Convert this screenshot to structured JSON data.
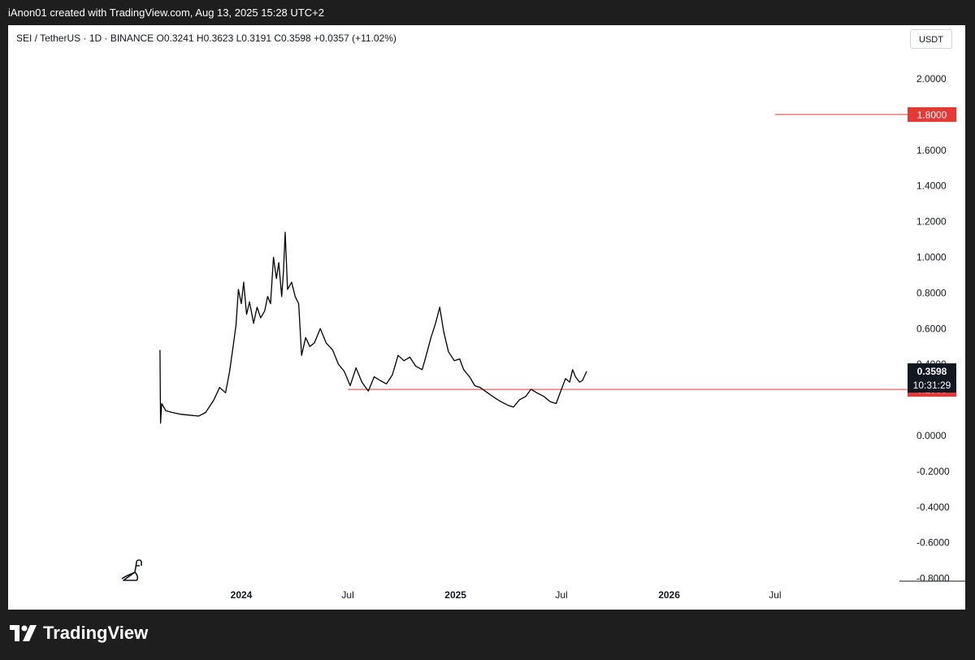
{
  "header": {
    "credit": "iAnon01 created with TradingView.com, Aug 13, 2025 15:28 UTC+2"
  },
  "legend": {
    "symbol": "SEI / TetherUS · 1D · BINANCE",
    "open": "O0.3241",
    "high": "H0.3623",
    "low": "L0.3191",
    "close": "C0.3598",
    "change": "+0.0357 (+11.02%)"
  },
  "currency": "USDT",
  "footer": {
    "brand": "TradingView"
  },
  "icons": {
    "brand_logo": "tradingview-logo-icon",
    "mascot": "dino-icon"
  },
  "colors": {
    "price": "#000000",
    "level_line": "#e53935",
    "last_price_bg": "#131722"
  },
  "chart_data": {
    "type": "line",
    "title": "SEI / TetherUS · 1D · BINANCE",
    "ylim": [
      -0.8,
      2.0
    ],
    "y_axis_position": "right",
    "y_ticks": [
      "2.0000",
      "1.6000",
      "1.4000",
      "1.2000",
      "1.0000",
      "0.8000",
      "0.6000",
      "0.4000",
      "0.0000",
      "-0.2000",
      "-0.4000",
      "-0.6000",
      "-0.8000"
    ],
    "x_ticks": [
      {
        "label": "2024",
        "date": "2024-01-01",
        "bold": true
      },
      {
        "label": "Jul",
        "date": "2024-07-01",
        "bold": false
      },
      {
        "label": "2025",
        "date": "2025-01-01",
        "bold": true
      },
      {
        "label": "Jul",
        "date": "2025-07-01",
        "bold": false
      },
      {
        "label": "2026",
        "date": "2026-01-01",
        "bold": true
      },
      {
        "label": "Jul",
        "date": "2026-07-01",
        "bold": false
      }
    ],
    "grid": false,
    "series": [
      {
        "values": [
          [
            "2023-08-15",
            0.48
          ],
          [
            "2023-08-16",
            0.07
          ],
          [
            "2023-08-18",
            0.18
          ],
          [
            "2023-08-25",
            0.14
          ],
          [
            "2023-09-05",
            0.13
          ],
          [
            "2023-09-20",
            0.12
          ],
          [
            "2023-10-05",
            0.115
          ],
          [
            "2023-10-20",
            0.11
          ],
          [
            "2023-11-01",
            0.13
          ],
          [
            "2023-11-15",
            0.2
          ],
          [
            "2023-11-25",
            0.27
          ],
          [
            "2023-12-05",
            0.24
          ],
          [
            "2023-12-12",
            0.36
          ],
          [
            "2023-12-18",
            0.5
          ],
          [
            "2023-12-23",
            0.62
          ],
          [
            "2023-12-27",
            0.82
          ],
          [
            "2024-01-01",
            0.74
          ],
          [
            "2024-01-05",
            0.86
          ],
          [
            "2024-01-10",
            0.68
          ],
          [
            "2024-01-15",
            0.75
          ],
          [
            "2024-01-22",
            0.63
          ],
          [
            "2024-01-28",
            0.72
          ],
          [
            "2024-02-03",
            0.66
          ],
          [
            "2024-02-10",
            0.7
          ],
          [
            "2024-02-15",
            0.78
          ],
          [
            "2024-02-20",
            0.74
          ],
          [
            "2024-02-25",
            1.0
          ],
          [
            "2024-03-01",
            0.88
          ],
          [
            "2024-03-05",
            0.97
          ],
          [
            "2024-03-10",
            0.78
          ],
          [
            "2024-03-13",
            0.92
          ],
          [
            "2024-03-16",
            1.14
          ],
          [
            "2024-03-20",
            0.82
          ],
          [
            "2024-03-27",
            0.86
          ],
          [
            "2024-04-02",
            0.78
          ],
          [
            "2024-04-08",
            0.74
          ],
          [
            "2024-04-13",
            0.45
          ],
          [
            "2024-04-20",
            0.55
          ],
          [
            "2024-04-27",
            0.5
          ],
          [
            "2024-05-05",
            0.52
          ],
          [
            "2024-05-15",
            0.6
          ],
          [
            "2024-05-25",
            0.52
          ],
          [
            "2024-06-05",
            0.48
          ],
          [
            "2024-06-15",
            0.4
          ],
          [
            "2024-06-25",
            0.36
          ],
          [
            "2024-07-05",
            0.28
          ],
          [
            "2024-07-15",
            0.38
          ],
          [
            "2024-07-25",
            0.3
          ],
          [
            "2024-08-05",
            0.25
          ],
          [
            "2024-08-15",
            0.33
          ],
          [
            "2024-08-25",
            0.31
          ],
          [
            "2024-09-05",
            0.29
          ],
          [
            "2024-09-15",
            0.34
          ],
          [
            "2024-09-25",
            0.45
          ],
          [
            "2024-10-05",
            0.42
          ],
          [
            "2024-10-15",
            0.44
          ],
          [
            "2024-10-25",
            0.39
          ],
          [
            "2024-11-05",
            0.37
          ],
          [
            "2024-11-12",
            0.45
          ],
          [
            "2024-11-20",
            0.55
          ],
          [
            "2024-11-28",
            0.63
          ],
          [
            "2024-12-05",
            0.72
          ],
          [
            "2024-12-12",
            0.58
          ],
          [
            "2024-12-20",
            0.47
          ],
          [
            "2024-12-30",
            0.42
          ],
          [
            "2025-01-08",
            0.43
          ],
          [
            "2025-01-15",
            0.37
          ],
          [
            "2025-01-25",
            0.33
          ],
          [
            "2025-02-03",
            0.28
          ],
          [
            "2025-02-12",
            0.27
          ],
          [
            "2025-02-25",
            0.24
          ],
          [
            "2025-03-10",
            0.21
          ],
          [
            "2025-03-20",
            0.19
          ],
          [
            "2025-04-01",
            0.17
          ],
          [
            "2025-04-10",
            0.16
          ],
          [
            "2025-04-20",
            0.2
          ],
          [
            "2025-05-01",
            0.22
          ],
          [
            "2025-05-10",
            0.26
          ],
          [
            "2025-05-20",
            0.24
          ],
          [
            "2025-06-01",
            0.22
          ],
          [
            "2025-06-12",
            0.19
          ],
          [
            "2025-06-22",
            0.18
          ],
          [
            "2025-07-01",
            0.26
          ],
          [
            "2025-07-08",
            0.32
          ],
          [
            "2025-07-15",
            0.3
          ],
          [
            "2025-07-20",
            0.37
          ],
          [
            "2025-07-25",
            0.33
          ],
          [
            "2025-08-01",
            0.3
          ],
          [
            "2025-08-06",
            0.31
          ],
          [
            "2025-08-13",
            0.3598
          ]
        ]
      }
    ],
    "horizontal_lines": [
      {
        "label": "1.8000",
        "value": 1.8,
        "from": "2026-07-01"
      },
      {
        "label": "0.2593",
        "value": 0.2593,
        "from": "2024-07-01"
      }
    ],
    "last_price": {
      "label": "0.3598",
      "value": 0.3598,
      "countdown": "10:31:29"
    }
  }
}
